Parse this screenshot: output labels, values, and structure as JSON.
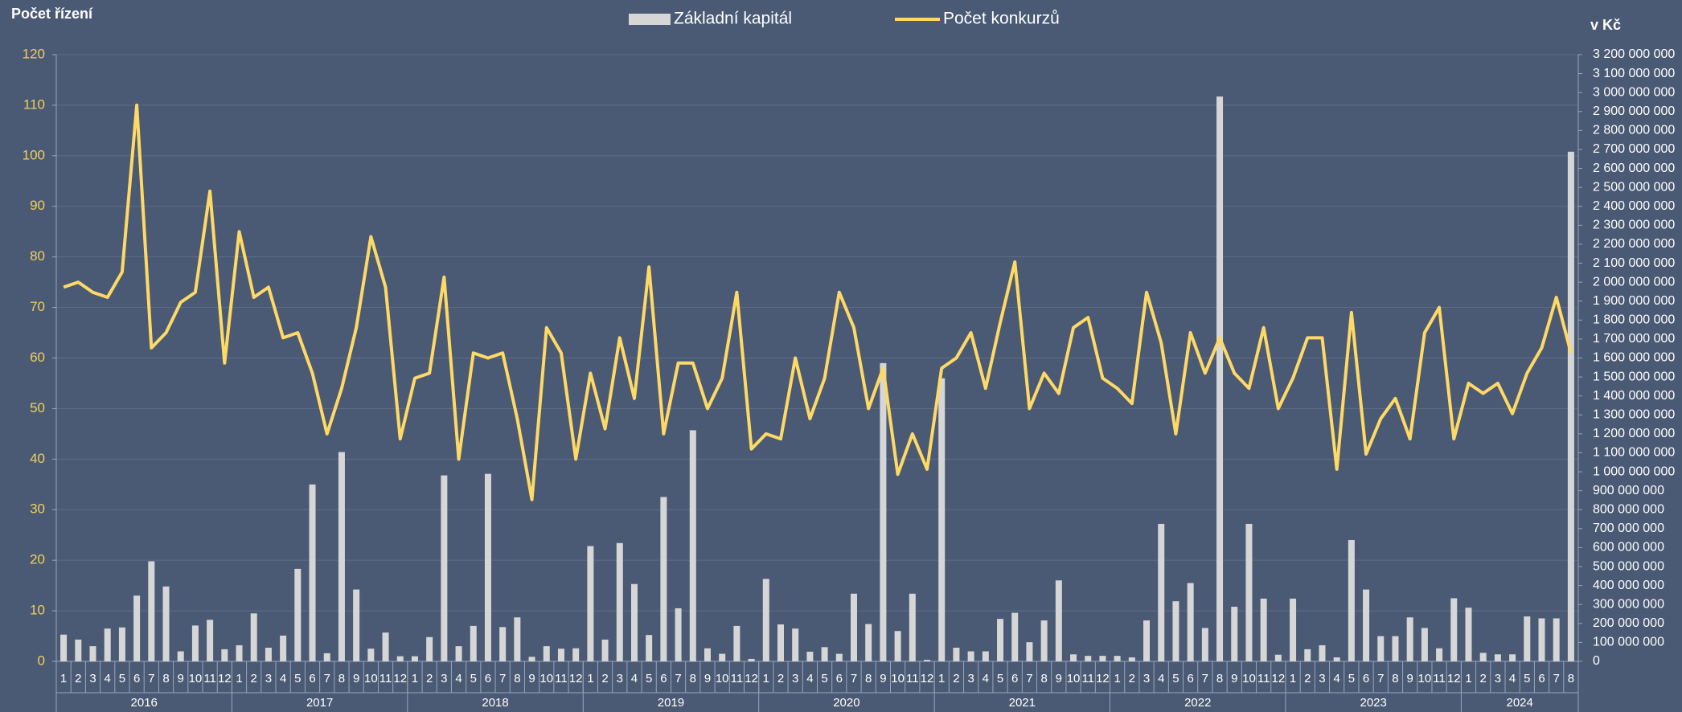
{
  "chart_data": {
    "type": "combo",
    "title_left": "Počet řízení",
    "title_right": "v Kč",
    "categories": [
      "1",
      "2",
      "3",
      "4",
      "5",
      "6",
      "7",
      "8",
      "9",
      "10",
      "11",
      "12",
      "1",
      "2",
      "3",
      "4",
      "5",
      "6",
      "7",
      "8",
      "9",
      "10",
      "11",
      "12",
      "1",
      "2",
      "3",
      "4",
      "5",
      "6",
      "7",
      "8",
      "9",
      "10",
      "11",
      "12",
      "1",
      "2",
      "3",
      "4",
      "5",
      "6",
      "7",
      "8",
      "9",
      "10",
      "11",
      "12",
      "1",
      "2",
      "3",
      "4",
      "5",
      "6",
      "7",
      "8",
      "9",
      "10",
      "11",
      "12",
      "1",
      "2",
      "3",
      "4",
      "5",
      "6",
      "7",
      "8",
      "9",
      "10",
      "11",
      "12",
      "1",
      "2",
      "3",
      "4",
      "5",
      "6",
      "7",
      "8",
      "9",
      "10",
      "11",
      "12",
      "1",
      "2",
      "3",
      "4",
      "5",
      "6",
      "7",
      "8",
      "9",
      "10",
      "11",
      "12",
      "1",
      "2",
      "3",
      "4",
      "5",
      "6",
      "7",
      "8"
    ],
    "years": [
      "2016",
      "2017",
      "2018",
      "2019",
      "2020",
      "2021",
      "2022",
      "2023",
      "2024"
    ],
    "series": [
      {
        "name": "Základní kapitál",
        "type": "bar",
        "axis": "y2",
        "color": "#d6d6d6",
        "values": [
          141000000,
          115000000,
          80000000,
          173000000,
          179000000,
          347000000,
          528000000,
          395000000,
          53000000,
          189000000,
          219000000,
          64000000,
          85000000,
          253000000,
          72000000,
          136000000,
          488000000,
          933000000,
          43000000,
          1104000000,
          379000000,
          67000000,
          152000000,
          27000000,
          27000000,
          128000000,
          981000000,
          80000000,
          187000000,
          989000000,
          181000000,
          232000000,
          24000000,
          80000000,
          67000000,
          69000000,
          608000000,
          115000000,
          624000000,
          408000000,
          139000000,
          867000000,
          280000000,
          1219000000,
          69000000,
          40000000,
          187000000,
          13000000,
          435000000,
          195000000,
          173000000,
          51000000,
          75000000,
          40000000,
          357000000,
          197000000,
          1573000000,
          160000000,
          357000000,
          8000000,
          1493000000,
          72000000,
          53000000,
          53000000,
          224000000,
          256000000,
          101000000,
          216000000,
          427000000,
          37000000,
          29000000,
          29000000,
          29000000,
          21000000,
          216000000,
          725000000,
          317000000,
          413000000,
          176000000,
          2979000000,
          288000000,
          725000000,
          331000000,
          35000000,
          331000000,
          64000000,
          85000000,
          21000000,
          640000000,
          379000000,
          133000000,
          133000000,
          232000000,
          176000000,
          69000000,
          333000000,
          283000000,
          45000000,
          37000000,
          37000000,
          237000000,
          227000000,
          227000000,
          2688000000
        ]
      },
      {
        "name": "Počet konkurzů",
        "type": "line",
        "axis": "y",
        "color": "#ffd966",
        "values": [
          74,
          75,
          73,
          72,
          77,
          110,
          62,
          65,
          71,
          73,
          93,
          59,
          85,
          72,
          74,
          64,
          65,
          57,
          45,
          54,
          66,
          84,
          74,
          44,
          56,
          57,
          76,
          40,
          61,
          60,
          61,
          48,
          32,
          66,
          61,
          40,
          57,
          46,
          64,
          52,
          78,
          45,
          59,
          59,
          50,
          56,
          73,
          42,
          45,
          44,
          60,
          48,
          56,
          73,
          66,
          50,
          58,
          37,
          45,
          38,
          58,
          60,
          65,
          54,
          67,
          79,
          50,
          57,
          53,
          66,
          68,
          56,
          54,
          51,
          73,
          63,
          45,
          65,
          57,
          64,
          57,
          54,
          66,
          50,
          56,
          64,
          64,
          38,
          69,
          41,
          48,
          52,
          44,
          65,
          70,
          44,
          55,
          53,
          55,
          49,
          57,
          62,
          72,
          61
        ]
      }
    ],
    "ylim": [
      0,
      120
    ],
    "yticks": [
      0,
      10,
      20,
      30,
      40,
      50,
      60,
      70,
      80,
      90,
      100,
      110,
      120
    ],
    "y2lim": [
      0,
      3200000000
    ],
    "y2ticks": [
      0,
      {
        "value": 100000000,
        "label": "100 000 000"
      },
      {
        "value": 200000000,
        "label": "200 000 000"
      },
      {
        "value": 300000000,
        "label": "300 000 000"
      },
      {
        "value": 400000000,
        "label": "400 000 000"
      },
      {
        "value": 500000000,
        "label": "500 000 000"
      },
      {
        "value": 600000000,
        "label": "600 000 000"
      },
      {
        "value": 700000000,
        "label": "700 000 000"
      },
      {
        "value": 800000000,
        "label": "800 000 000"
      },
      {
        "value": 900000000,
        "label": "900 000 000"
      },
      {
        "value": 1000000000,
        "label": "1 000 000 000"
      },
      {
        "value": 1100000000,
        "label": "1 100 000 000"
      },
      {
        "value": 1200000000,
        "label": "1 200 000 000"
      },
      {
        "value": 1300000000,
        "label": "1 300 000 000"
      },
      {
        "value": 1400000000,
        "label": "1 400 000 000"
      },
      {
        "value": 1500000000,
        "label": "1 500 000 000"
      },
      {
        "value": 1600000000,
        "label": "1 600 000 000"
      },
      {
        "value": 1700000000,
        "label": "1 700 000 000"
      },
      {
        "value": 1800000000,
        "label": "1 800 000 000"
      },
      {
        "value": 1900000000,
        "label": "1 900 000 000"
      },
      {
        "value": 2000000000,
        "label": "2 000 000 000"
      },
      {
        "value": 2100000000,
        "label": "2 100 000 000"
      },
      {
        "value": 2200000000,
        "label": "2 200 000 000"
      },
      {
        "value": 2300000000,
        "label": "2 300 000 000"
      },
      {
        "value": 2400000000,
        "label": "2 400 000 000"
      },
      {
        "value": 2500000000,
        "label": "2 500 000 000"
      },
      {
        "value": 2600000000,
        "label": "2 600 000 000"
      },
      {
        "value": 2700000000,
        "label": "2 700 000 000"
      },
      {
        "value": 2800000000,
        "label": "2 800 000 000"
      },
      {
        "value": 2900000000,
        "label": "2 900 000 000"
      },
      {
        "value": 3000000000,
        "label": "3 000 000 000"
      },
      {
        "value": 3100000000,
        "label": "3 100 000 000"
      },
      {
        "value": 3200000000,
        "label": "3 200 000 000"
      }
    ],
    "grid": true,
    "legend": "top"
  }
}
